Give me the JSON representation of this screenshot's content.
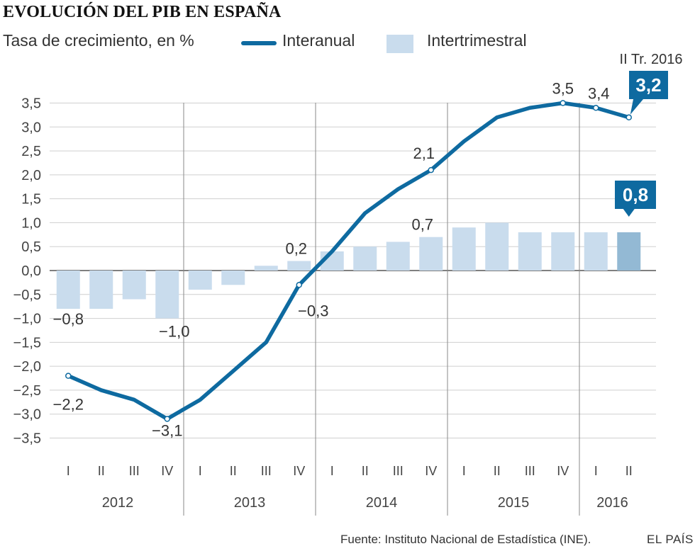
{
  "header": {
    "title": "EVOLUCIÓN DEL PIB EN ESPAÑA",
    "subtitle": "Tasa de crecimiento, en %"
  },
  "legend": {
    "line_label": "Interanual",
    "bar_label": "Intertrimestral"
  },
  "footer": {
    "source": "Fuente: Instituto Nacional de Estadística (INE).",
    "brand": "EL PAÍS"
  },
  "colors": {
    "line": "#0e6aa0",
    "bar": "#c9dced",
    "bar_highlight": "#93b9d4",
    "callout": "#0e6aa0",
    "grid": "#cfcfcf",
    "year_separator": "#8a8a8a"
  },
  "chart_data": {
    "type": "bar",
    "title": "EVOLUCIÓN DEL PIB EN ESPAÑA",
    "ylabel": "Tasa de crecimiento, en %",
    "ylim": [
      -3.5,
      3.5
    ],
    "yticks": [
      "3,5",
      "3,0",
      "2,5",
      "2,0",
      "1,5",
      "1,0",
      "0,5",
      "0,0",
      "−0,5",
      "−1,0",
      "−1,5",
      "−2,0",
      "−2,5",
      "−3,0",
      "−3,5"
    ],
    "ytick_values": [
      3.5,
      3.0,
      2.5,
      2.0,
      1.5,
      1.0,
      0.5,
      0.0,
      -0.5,
      -1.0,
      -1.5,
      -2.0,
      -2.5,
      -3.0,
      -3.5
    ],
    "categories": [
      "I",
      "II",
      "III",
      "IV",
      "I",
      "II",
      "III",
      "IV",
      "I",
      "II",
      "III",
      "IV",
      "I",
      "II",
      "III",
      "IV",
      "I",
      "II"
    ],
    "years": [
      {
        "label": "2012",
        "quarters": 4
      },
      {
        "label": "2013",
        "quarters": 4
      },
      {
        "label": "2014",
        "quarters": 4
      },
      {
        "label": "2015",
        "quarters": 4
      },
      {
        "label": "2016",
        "quarters": 2
      }
    ],
    "series": [
      {
        "name": "Intertrimestral",
        "type": "bar",
        "values": [
          -0.8,
          -0.8,
          -0.6,
          -1.0,
          -0.4,
          -0.3,
          0.1,
          0.2,
          0.4,
          0.5,
          0.6,
          0.7,
          0.9,
          1.0,
          0.8,
          0.8,
          0.8,
          0.8
        ]
      },
      {
        "name": "Interanual",
        "type": "line",
        "values": [
          -2.2,
          -2.5,
          -2.7,
          -3.1,
          -2.7,
          -2.1,
          -1.5,
          -0.3,
          0.4,
          1.2,
          1.7,
          2.1,
          2.7,
          3.2,
          3.4,
          3.5,
          3.4,
          3.2
        ]
      }
    ],
    "line_labels": [
      {
        "index": 0,
        "text": "−2,2"
      },
      {
        "index": 3,
        "text": "−3,1"
      },
      {
        "index": 7,
        "text": "−0,3"
      },
      {
        "index": 11,
        "text": "2,1"
      },
      {
        "index": 15,
        "text": "3,5"
      },
      {
        "index": 16,
        "text": "3,4"
      }
    ],
    "bar_labels": [
      {
        "index": 0,
        "text": "−0,8"
      },
      {
        "index": 3,
        "text": "−1,0"
      },
      {
        "index": 7,
        "text": "0,2"
      },
      {
        "index": 11,
        "text": "0,7"
      }
    ],
    "callouts": {
      "period": "II Tr. 2016",
      "line_value": "3,2",
      "bar_value": "0,8",
      "index": 17
    }
  }
}
